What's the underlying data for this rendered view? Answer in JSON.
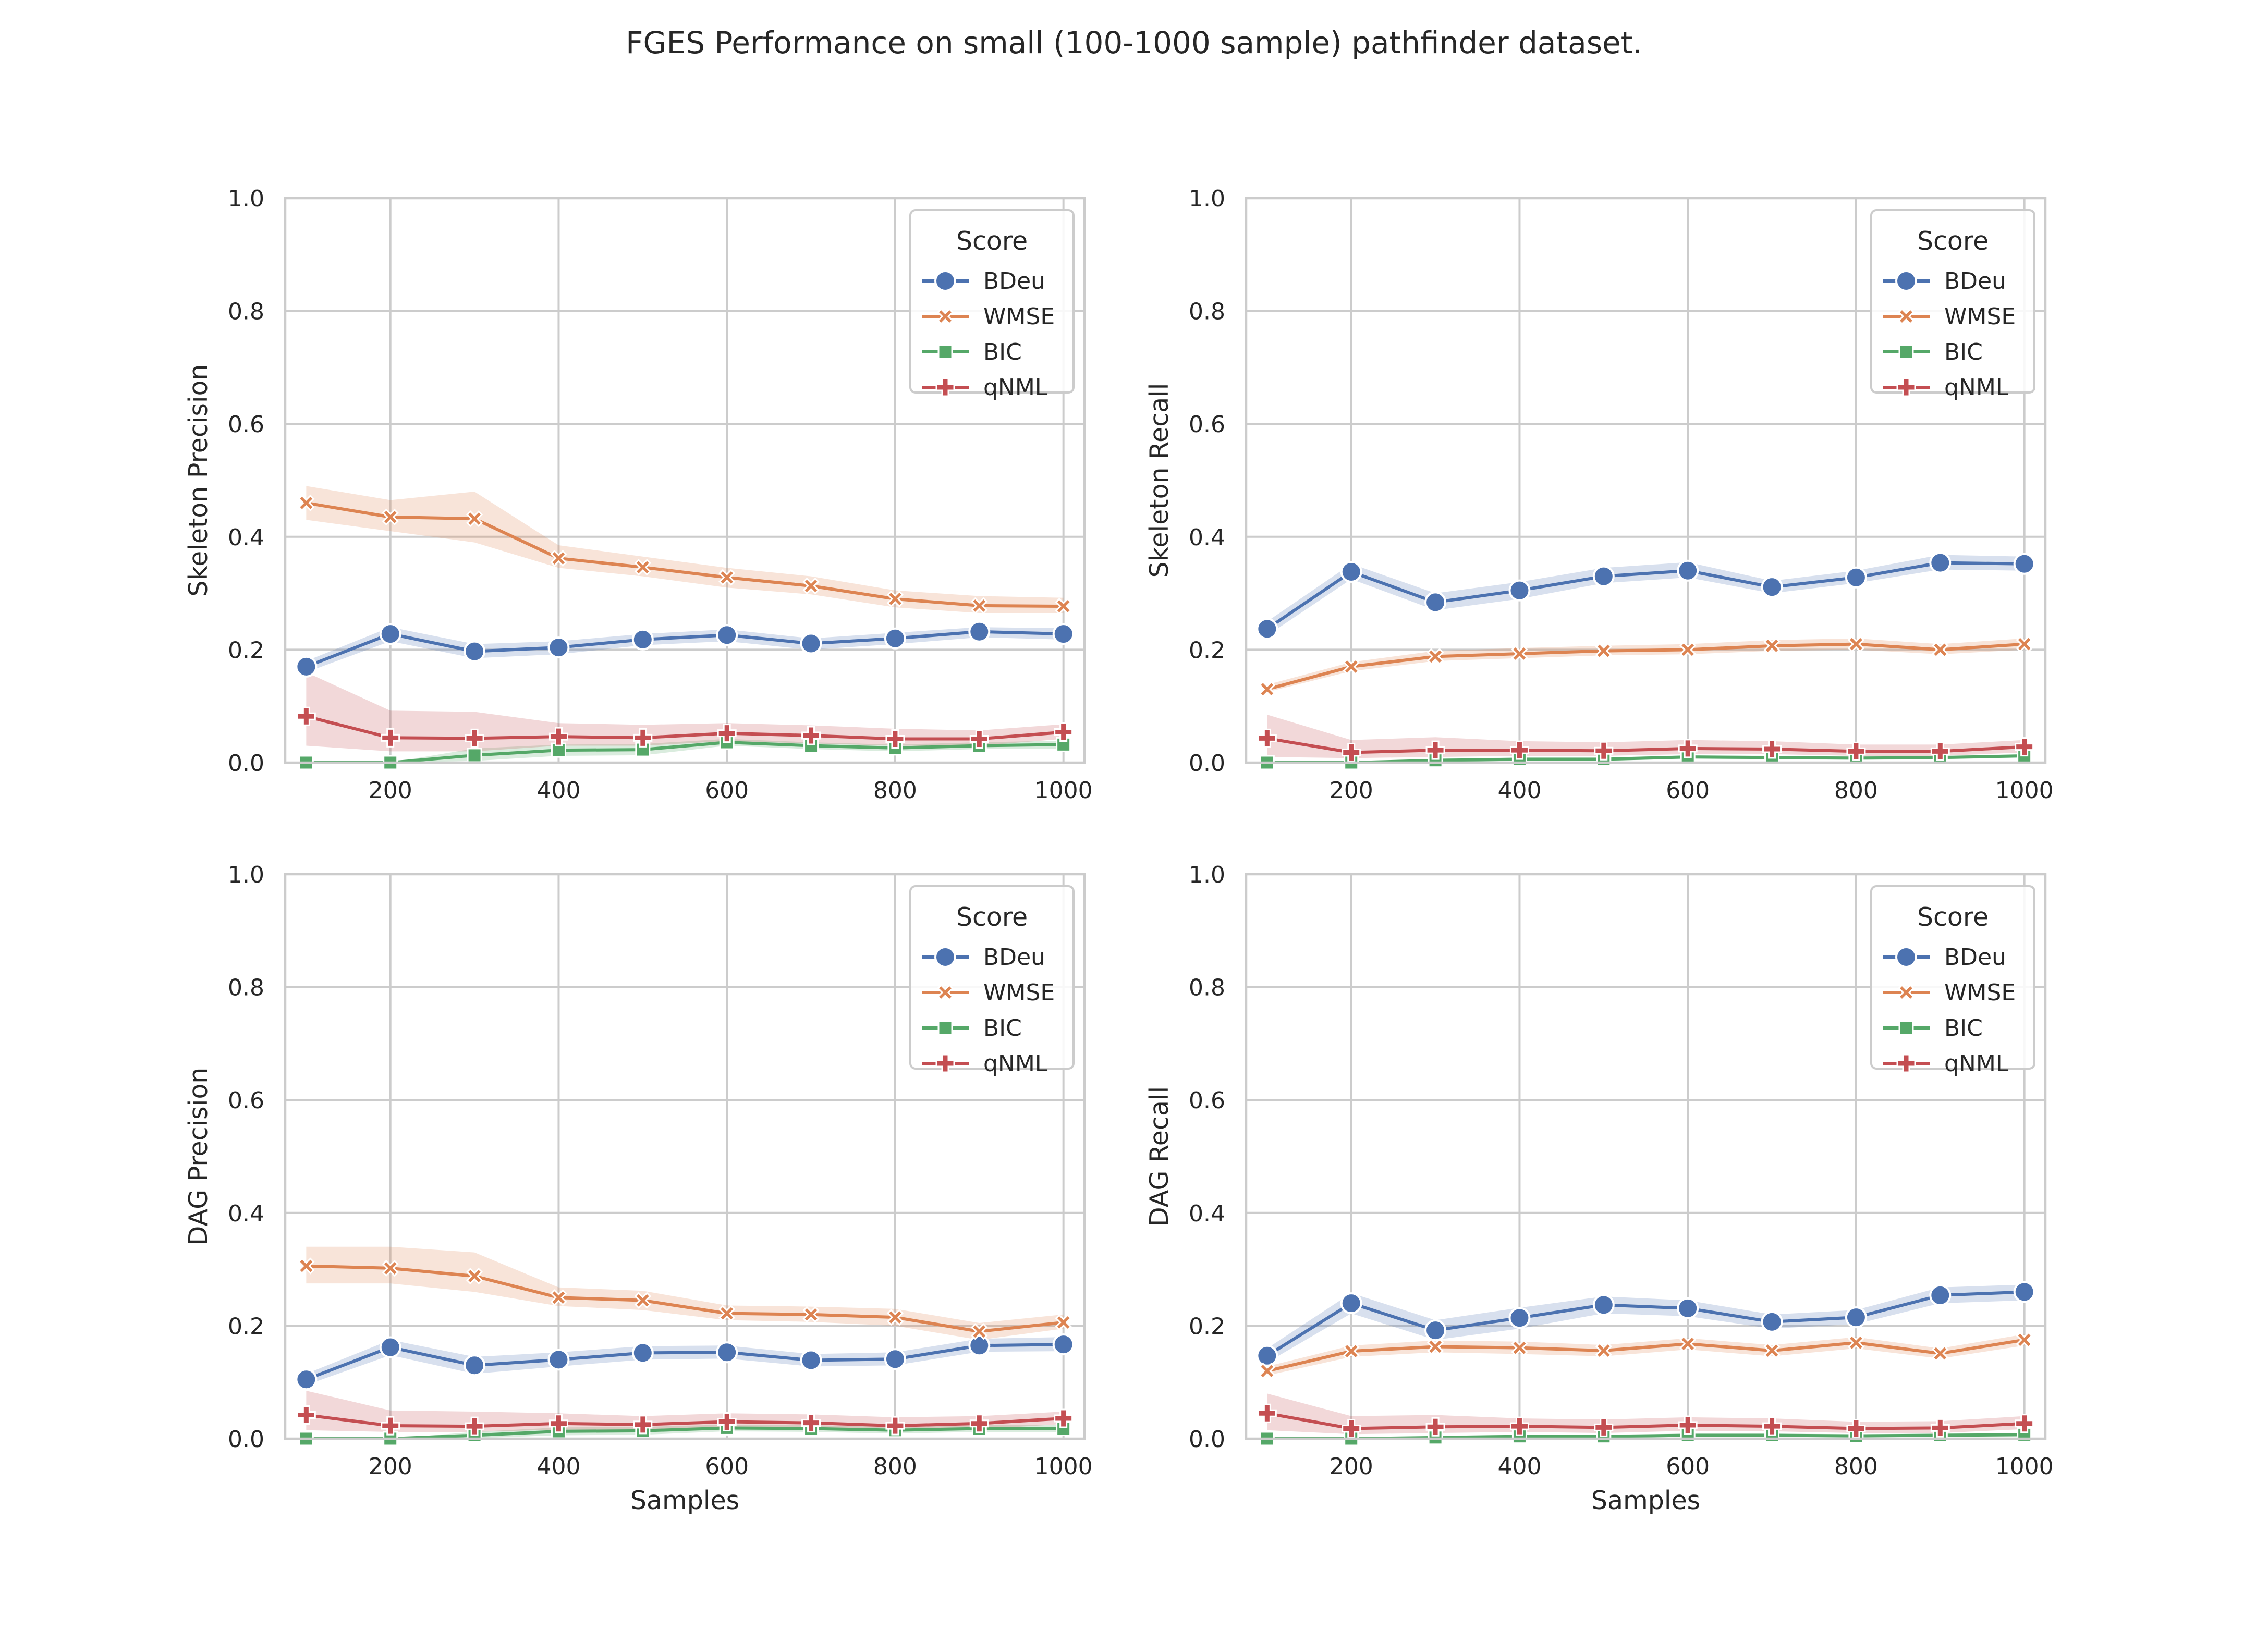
{
  "title": "FGES Performance on small (100-1000 sample) pathfinder dataset.",
  "legend": {
    "title": "Score",
    "placement": "upper-right",
    "entries": [
      "BDeu",
      "WMSE",
      "BIC",
      "qNML"
    ]
  },
  "series_style": {
    "BDeu": {
      "color": "#4c72b0",
      "marker": "circle"
    },
    "WMSE": {
      "color": "#dd8452",
      "marker": "x"
    },
    "BIC": {
      "color": "#55a868",
      "marker": "square"
    },
    "qNML": {
      "color": "#c44e52",
      "marker": "plus"
    }
  },
  "chart_data": [
    {
      "type": "line",
      "xlabel": "",
      "ylabel": "Skeleton Precision",
      "xlim": [
        75,
        1025
      ],
      "ylim": [
        0,
        1
      ],
      "xticks": [
        200,
        400,
        600,
        800,
        1000
      ],
      "yticks": [
        "0.0",
        "0.2",
        "0.4",
        "0.6",
        "0.8",
        "1.0"
      ],
      "grid": true,
      "x": [
        100,
        200,
        300,
        400,
        500,
        600,
        700,
        800,
        900,
        1000
      ],
      "series": [
        {
          "name": "BDeu",
          "values": [
            0.17,
            0.228,
            0.197,
            0.204,
            0.218,
            0.226,
            0.211,
            0.22,
            0.232,
            0.228
          ],
          "band": [
            [
              0.16,
              0.18
            ],
            [
              0.215,
              0.24
            ],
            [
              0.185,
              0.21
            ],
            [
              0.192,
              0.215
            ],
            [
              0.208,
              0.228
            ],
            [
              0.215,
              0.236
            ],
            [
              0.2,
              0.22
            ],
            [
              0.21,
              0.23
            ],
            [
              0.222,
              0.24
            ],
            [
              0.218,
              0.238
            ]
          ]
        },
        {
          "name": "WMSE",
          "values": [
            0.46,
            0.435,
            0.432,
            0.362,
            0.346,
            0.328,
            0.313,
            0.29,
            0.278,
            0.277
          ],
          "band": [
            [
              0.43,
              0.49
            ],
            [
              0.41,
              0.465
            ],
            [
              0.39,
              0.48
            ],
            [
              0.345,
              0.385
            ],
            [
              0.33,
              0.365
            ],
            [
              0.31,
              0.345
            ],
            [
              0.298,
              0.33
            ],
            [
              0.275,
              0.305
            ],
            [
              0.265,
              0.295
            ],
            [
              0.265,
              0.292
            ]
          ]
        },
        {
          "name": "BIC",
          "values": [
            0.0,
            0.0,
            0.013,
            0.022,
            0.023,
            0.036,
            0.03,
            0.026,
            0.03,
            0.032
          ],
          "band": [
            [
              0,
              0
            ],
            [
              0,
              0
            ],
            [
              0.003,
              0.025
            ],
            [
              0.012,
              0.032
            ],
            [
              0.013,
              0.033
            ],
            [
              0.03,
              0.042
            ],
            [
              0.024,
              0.036
            ],
            [
              0.02,
              0.032
            ],
            [
              0.024,
              0.036
            ],
            [
              0.025,
              0.039
            ]
          ]
        },
        {
          "name": "qNML",
          "values": [
            0.082,
            0.044,
            0.043,
            0.046,
            0.044,
            0.052,
            0.048,
            0.042,
            0.042,
            0.054
          ],
          "band": [
            [
              0.03,
              0.16
            ],
            [
              0.02,
              0.092
            ],
            [
              0.02,
              0.09
            ],
            [
              0.03,
              0.07
            ],
            [
              0.03,
              0.067
            ],
            [
              0.038,
              0.07
            ],
            [
              0.034,
              0.066
            ],
            [
              0.03,
              0.06
            ],
            [
              0.03,
              0.057
            ],
            [
              0.042,
              0.068
            ]
          ]
        }
      ]
    },
    {
      "type": "line",
      "xlabel": "",
      "ylabel": "Skeleton Recall",
      "xlim": [
        75,
        1025
      ],
      "ylim": [
        0,
        1
      ],
      "xticks": [
        200,
        400,
        600,
        800,
        1000
      ],
      "yticks": [
        "0.0",
        "0.2",
        "0.4",
        "0.6",
        "0.8",
        "1.0"
      ],
      "grid": true,
      "x": [
        100,
        200,
        300,
        400,
        500,
        600,
        700,
        800,
        900,
        1000
      ],
      "series": [
        {
          "name": "BDeu",
          "values": [
            0.237,
            0.338,
            0.284,
            0.305,
            0.33,
            0.34,
            0.311,
            0.328,
            0.354,
            0.352
          ],
          "band": [
            [
              0.225,
              0.25
            ],
            [
              0.325,
              0.352
            ],
            [
              0.27,
              0.3
            ],
            [
              0.29,
              0.32
            ],
            [
              0.318,
              0.345
            ],
            [
              0.328,
              0.355
            ],
            [
              0.3,
              0.322
            ],
            [
              0.318,
              0.34
            ],
            [
              0.342,
              0.368
            ],
            [
              0.34,
              0.365
            ]
          ]
        },
        {
          "name": "WMSE",
          "values": [
            0.13,
            0.17,
            0.188,
            0.193,
            0.198,
            0.2,
            0.207,
            0.21,
            0.2,
            0.21
          ],
          "band": [
            [
              0.125,
              0.138
            ],
            [
              0.162,
              0.178
            ],
            [
              0.18,
              0.198
            ],
            [
              0.185,
              0.203
            ],
            [
              0.19,
              0.207
            ],
            [
              0.192,
              0.21
            ],
            [
              0.198,
              0.217
            ],
            [
              0.2,
              0.22
            ],
            [
              0.192,
              0.21
            ],
            [
              0.2,
              0.22
            ]
          ]
        },
        {
          "name": "BIC",
          "values": [
            0.0,
            0.0,
            0.004,
            0.006,
            0.006,
            0.01,
            0.009,
            0.008,
            0.009,
            0.012
          ],
          "band": [
            [
              0,
              0
            ],
            [
              0,
              0
            ],
            [
              0.001,
              0.007
            ],
            [
              0.003,
              0.009
            ],
            [
              0.003,
              0.009
            ],
            [
              0.007,
              0.013
            ],
            [
              0.006,
              0.012
            ],
            [
              0.005,
              0.011
            ],
            [
              0.006,
              0.012
            ],
            [
              0.009,
              0.015
            ]
          ]
        },
        {
          "name": "qNML",
          "values": [
            0.043,
            0.018,
            0.022,
            0.022,
            0.021,
            0.025,
            0.024,
            0.02,
            0.02,
            0.028
          ],
          "band": [
            [
              0.01,
              0.085
            ],
            [
              0.008,
              0.04
            ],
            [
              0.01,
              0.045
            ],
            [
              0.012,
              0.038
            ],
            [
              0.012,
              0.036
            ],
            [
              0.015,
              0.04
            ],
            [
              0.015,
              0.038
            ],
            [
              0.012,
              0.032
            ],
            [
              0.012,
              0.032
            ],
            [
              0.018,
              0.04
            ]
          ]
        }
      ]
    },
    {
      "type": "line",
      "xlabel": "Samples",
      "ylabel": "DAG Precision",
      "xlim": [
        75,
        1025
      ],
      "ylim": [
        0,
        1
      ],
      "xticks": [
        200,
        400,
        600,
        800,
        1000
      ],
      "yticks": [
        "0.0",
        "0.2",
        "0.4",
        "0.6",
        "0.8",
        "1.0"
      ],
      "grid": true,
      "x": [
        100,
        200,
        300,
        400,
        500,
        600,
        700,
        800,
        900,
        1000
      ],
      "series": [
        {
          "name": "BDeu",
          "values": [
            0.105,
            0.162,
            0.13,
            0.14,
            0.152,
            0.153,
            0.139,
            0.141,
            0.165,
            0.167
          ],
          "band": [
            [
              0.095,
              0.115
            ],
            [
              0.148,
              0.175
            ],
            [
              0.115,
              0.145
            ],
            [
              0.128,
              0.153
            ],
            [
              0.14,
              0.164
            ],
            [
              0.142,
              0.165
            ],
            [
              0.128,
              0.15
            ],
            [
              0.13,
              0.153
            ],
            [
              0.154,
              0.177
            ],
            [
              0.155,
              0.18
            ]
          ]
        },
        {
          "name": "WMSE",
          "values": [
            0.306,
            0.302,
            0.288,
            0.25,
            0.245,
            0.222,
            0.22,
            0.215,
            0.19,
            0.206
          ],
          "band": [
            [
              0.275,
              0.34
            ],
            [
              0.275,
              0.34
            ],
            [
              0.26,
              0.33
            ],
            [
              0.235,
              0.268
            ],
            [
              0.228,
              0.262
            ],
            [
              0.21,
              0.236
            ],
            [
              0.207,
              0.234
            ],
            [
              0.2,
              0.23
            ],
            [
              0.175,
              0.205
            ],
            [
              0.195,
              0.22
            ]
          ]
        },
        {
          "name": "BIC",
          "values": [
            0.0,
            0.0,
            0.006,
            0.013,
            0.014,
            0.019,
            0.018,
            0.015,
            0.018,
            0.018
          ],
          "band": [
            [
              0,
              0
            ],
            [
              0,
              0
            ],
            [
              0.001,
              0.012
            ],
            [
              0.006,
              0.02
            ],
            [
              0.007,
              0.021
            ],
            [
              0.013,
              0.025
            ],
            [
              0.012,
              0.024
            ],
            [
              0.009,
              0.021
            ],
            [
              0.012,
              0.024
            ],
            [
              0.012,
              0.024
            ]
          ]
        },
        {
          "name": "qNML",
          "values": [
            0.042,
            0.023,
            0.022,
            0.027,
            0.025,
            0.03,
            0.028,
            0.023,
            0.027,
            0.036
          ],
          "band": [
            [
              0.015,
              0.085
            ],
            [
              0.012,
              0.05
            ],
            [
              0.012,
              0.048
            ],
            [
              0.016,
              0.045
            ],
            [
              0.015,
              0.04
            ],
            [
              0.02,
              0.045
            ],
            [
              0.018,
              0.043
            ],
            [
              0.014,
              0.038
            ],
            [
              0.017,
              0.04
            ],
            [
              0.026,
              0.048
            ]
          ]
        }
      ]
    },
    {
      "type": "line",
      "xlabel": "Samples",
      "ylabel": "DAG Recall",
      "xlim": [
        75,
        1025
      ],
      "ylim": [
        0,
        1
      ],
      "xticks": [
        200,
        400,
        600,
        800,
        1000
      ],
      "yticks": [
        "0.0",
        "0.2",
        "0.4",
        "0.6",
        "0.8",
        "1.0"
      ],
      "grid": true,
      "x": [
        100,
        200,
        300,
        400,
        500,
        600,
        700,
        800,
        900,
        1000
      ],
      "series": [
        {
          "name": "BDeu",
          "values": [
            0.147,
            0.24,
            0.192,
            0.214,
            0.237,
            0.231,
            0.207,
            0.215,
            0.254,
            0.26
          ],
          "band": [
            [
              0.135,
              0.16
            ],
            [
              0.222,
              0.258
            ],
            [
              0.175,
              0.21
            ],
            [
              0.195,
              0.232
            ],
            [
              0.222,
              0.252
            ],
            [
              0.217,
              0.245
            ],
            [
              0.195,
              0.22
            ],
            [
              0.203,
              0.228
            ],
            [
              0.24,
              0.268
            ],
            [
              0.245,
              0.273
            ]
          ]
        },
        {
          "name": "WMSE",
          "values": [
            0.12,
            0.155,
            0.163,
            0.161,
            0.156,
            0.168,
            0.156,
            0.17,
            0.151,
            0.175
          ],
          "band": [
            [
              0.112,
              0.128
            ],
            [
              0.145,
              0.165
            ],
            [
              0.153,
              0.174
            ],
            [
              0.15,
              0.172
            ],
            [
              0.146,
              0.166
            ],
            [
              0.158,
              0.178
            ],
            [
              0.146,
              0.166
            ],
            [
              0.16,
              0.18
            ],
            [
              0.142,
              0.16
            ],
            [
              0.165,
              0.185
            ]
          ]
        },
        {
          "name": "BIC",
          "values": [
            0.0,
            0.0,
            0.002,
            0.004,
            0.004,
            0.006,
            0.006,
            0.005,
            0.006,
            0.007
          ],
          "band": [
            [
              0,
              0
            ],
            [
              0,
              0
            ],
            [
              0,
              0.005
            ],
            [
              0.002,
              0.007
            ],
            [
              0.002,
              0.007
            ],
            [
              0.004,
              0.009
            ],
            [
              0.004,
              0.009
            ],
            [
              0.003,
              0.008
            ],
            [
              0.004,
              0.009
            ],
            [
              0.005,
              0.01
            ]
          ]
        },
        {
          "name": "qNML",
          "values": [
            0.045,
            0.018,
            0.021,
            0.022,
            0.02,
            0.024,
            0.022,
            0.018,
            0.019,
            0.027
          ],
          "band": [
            [
              0.015,
              0.08
            ],
            [
              0.008,
              0.04
            ],
            [
              0.01,
              0.042
            ],
            [
              0.012,
              0.036
            ],
            [
              0.01,
              0.034
            ],
            [
              0.014,
              0.038
            ],
            [
              0.013,
              0.036
            ],
            [
              0.01,
              0.03
            ],
            [
              0.01,
              0.031
            ],
            [
              0.017,
              0.04
            ]
          ]
        }
      ]
    }
  ]
}
